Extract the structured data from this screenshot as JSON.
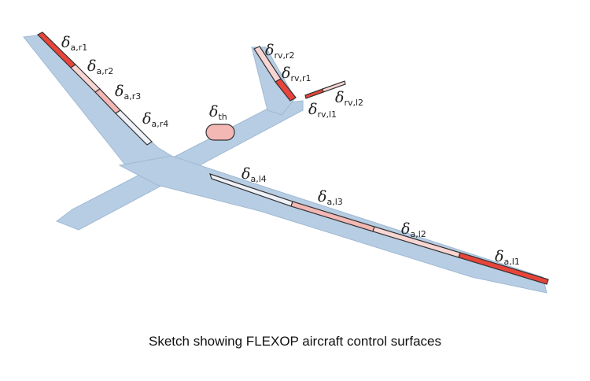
{
  "caption": "Sketch showing FLEXOP aircraft control surfaces",
  "colors": {
    "airframe": "#b7cde3",
    "airframe_edge": "#9fb9d4",
    "surface_red": "#e8443a",
    "surface_pink": "#f3b7b4",
    "surface_pale": "#f7d5d3",
    "surface_white": "#eef1f8",
    "outline": "#333333"
  },
  "labels": {
    "a_r1": {
      "sym": "δ",
      "sub": "a,r1"
    },
    "a_r2": {
      "sym": "δ",
      "sub": "a,r2"
    },
    "a_r3": {
      "sym": "δ",
      "sub": "a,r3"
    },
    "a_r4": {
      "sym": "δ",
      "sub": "a,r4"
    },
    "th": {
      "sym": "δ",
      "sub": "th"
    },
    "rv_r2": {
      "sym": "δ",
      "sub": "rv,r2"
    },
    "rv_r1": {
      "sym": "δ",
      "sub": "rv,r1"
    },
    "rv_l2": {
      "sym": "δ",
      "sub": "rv,l2"
    },
    "rv_l1": {
      "sym": "δ",
      "sub": "rv,l1"
    },
    "a_l4": {
      "sym": "δ",
      "sub": "a,l4"
    },
    "a_l3": {
      "sym": "δ",
      "sub": "a,l3"
    },
    "a_l2": {
      "sym": "δ",
      "sub": "a,l2"
    },
    "a_l1": {
      "sym": "δ",
      "sub": "a,l1"
    }
  }
}
